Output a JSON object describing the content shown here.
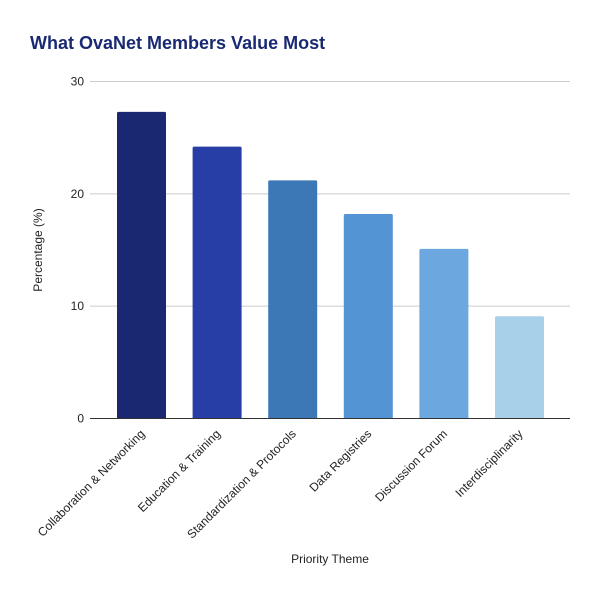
{
  "chart_data": {
    "type": "bar",
    "title": "What OvaNet Members Value Most",
    "xlabel": "Priority Theme",
    "ylabel": "Percentage (%)",
    "ylim": [
      0,
      30
    ],
    "yticks": [
      0,
      10,
      20,
      30
    ],
    "grid": true,
    "categories": [
      "Collaboration & Networking",
      "Education & Training",
      "Standardization & Protocols",
      "Data Registries",
      "Discussion Forum",
      "Interdisciplinarity"
    ],
    "values": [
      27.3,
      24.2,
      21.2,
      18.2,
      15.1,
      9.1
    ],
    "colors": [
      "#1a2872",
      "#273ea6",
      "#3d78b6",
      "#5394d4",
      "#6ca7e0",
      "#a8d0e8"
    ]
  }
}
